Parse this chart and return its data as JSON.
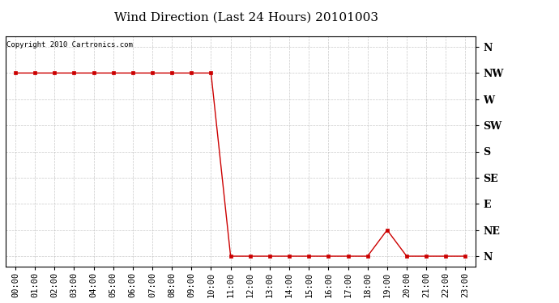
{
  "title": "Wind Direction (Last 24 Hours) 20101003",
  "copyright": "Copyright 2010 Cartronics.com",
  "line_color": "#cc0000",
  "bg_color": "#ffffff",
  "grid_color": "#bbbbbb",
  "plot_bg": "#ffffff",
  "hours": [
    0,
    1,
    2,
    3,
    4,
    5,
    6,
    7,
    8,
    9,
    10,
    11,
    12,
    13,
    14,
    15,
    16,
    17,
    18,
    19,
    20,
    21,
    22,
    23
  ],
  "values": [
    315,
    315,
    315,
    315,
    315,
    315,
    315,
    315,
    315,
    315,
    315,
    0,
    0,
    0,
    0,
    0,
    0,
    0,
    0,
    45,
    0,
    0,
    0,
    0
  ],
  "yticks": [
    0,
    45,
    90,
    135,
    180,
    225,
    270,
    315,
    360
  ],
  "ylabels": [
    "N",
    "NE",
    "E",
    "SE",
    "S",
    "SW",
    "W",
    "NW",
    "N"
  ],
  "ylim": [
    -18,
    378
  ],
  "xtick_labels": [
    "00:00",
    "01:00",
    "02:00",
    "03:00",
    "04:00",
    "05:00",
    "06:00",
    "07:00",
    "08:00",
    "09:00",
    "10:00",
    "11:00",
    "12:00",
    "13:00",
    "14:00",
    "15:00",
    "16:00",
    "17:00",
    "18:00",
    "19:00",
    "20:00",
    "21:00",
    "22:00",
    "23:00"
  ],
  "title_fontsize": 11,
  "label_fontsize": 9,
  "tick_fontsize": 7.5
}
